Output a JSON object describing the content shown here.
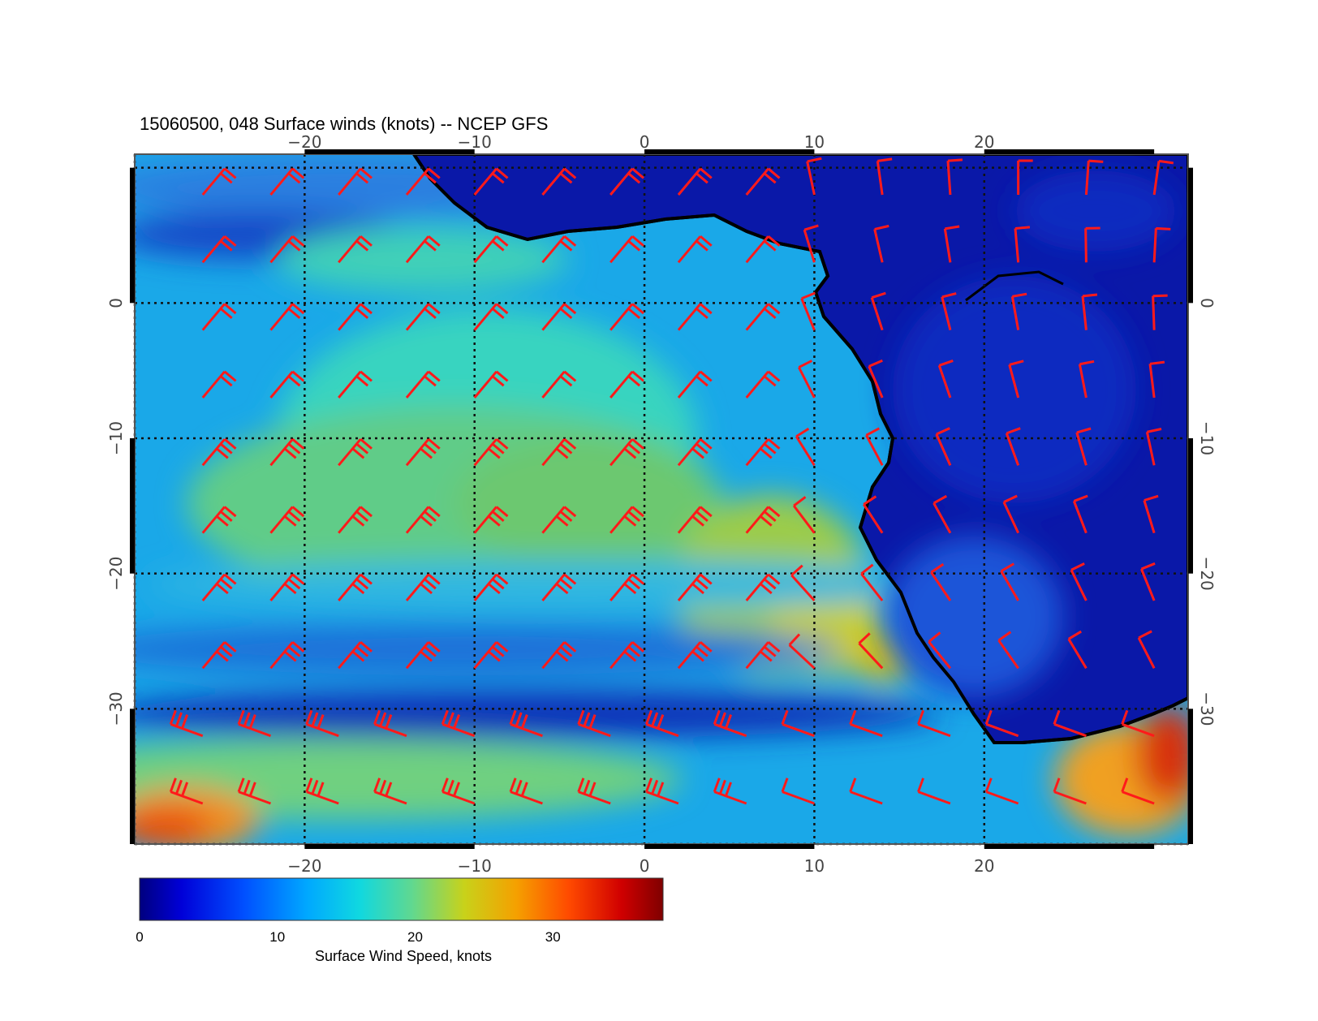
{
  "title": "15060500, 048 Surface winds (knots) -- NCEP GFS",
  "map": {
    "lon_range": [
      -30,
      32
    ],
    "lat_range": [
      -40,
      11
    ],
    "lon_ticks": [
      "−20",
      "−10",
      "0",
      "10",
      "20"
    ],
    "lat_ticks": [
      "0",
      "−10",
      "−20",
      "−30"
    ],
    "gridlines": "dotted",
    "barb_color": "#ff1a1a",
    "coast_color": "#000000"
  },
  "colorbar": {
    "label": "Surface Wind Speed, knots",
    "ticks": [
      "0",
      "10",
      "20",
      "30"
    ],
    "range": [
      0,
      38
    ],
    "colormap": [
      "#00007f",
      "#0000e0",
      "#0060ff",
      "#00c4ff",
      "#28e0c8",
      "#7ad078",
      "#c8d21a",
      "#f0a000",
      "#ff5000",
      "#d40000",
      "#7f0000"
    ]
  }
}
